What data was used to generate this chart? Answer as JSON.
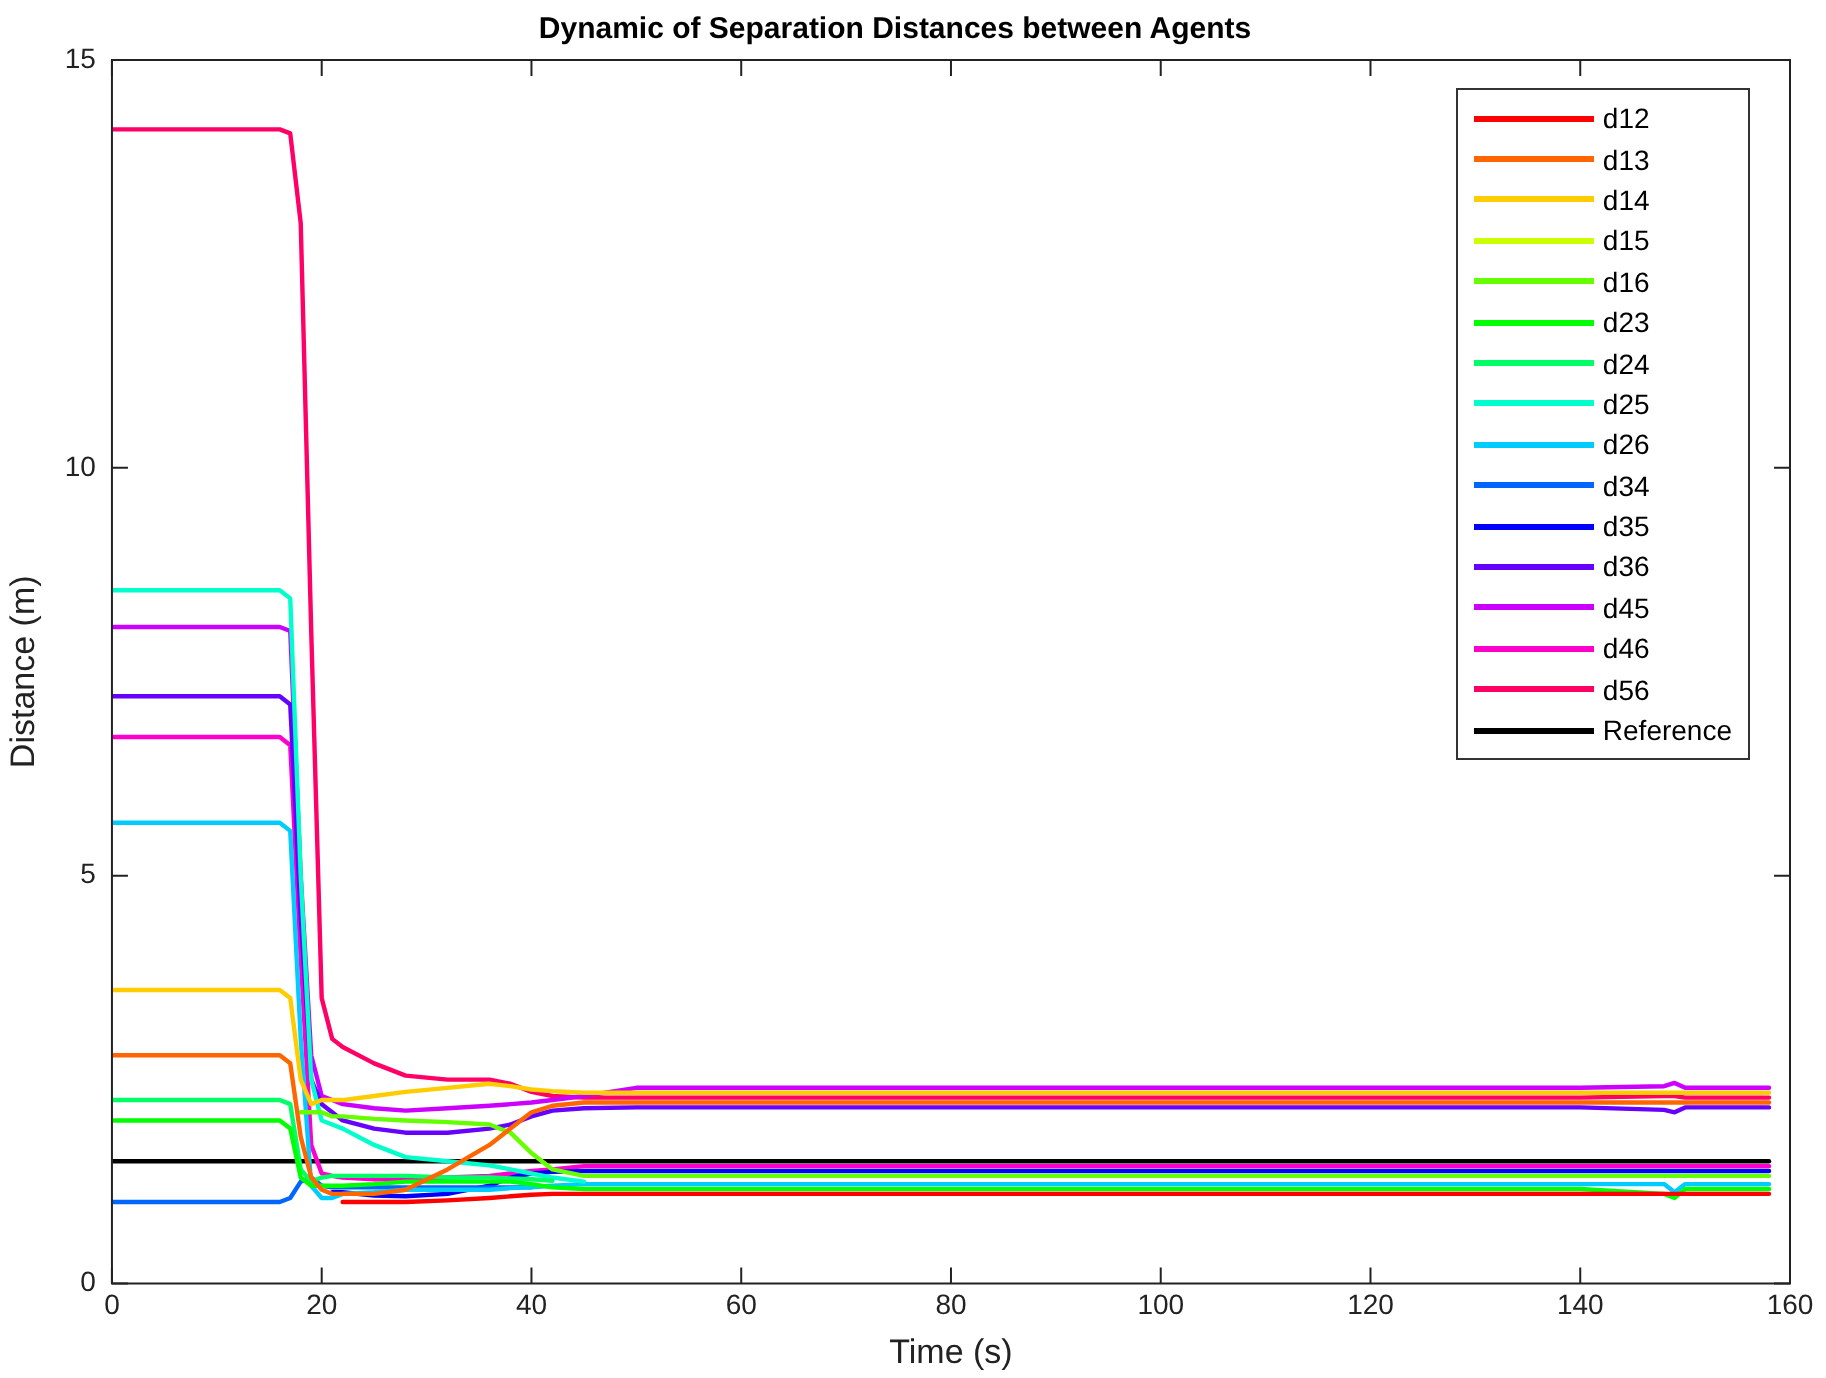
{
  "chart_data": {
    "type": "line",
    "title": "Dynamic of Separation Distances between Agents",
    "xlabel": "Time (s)",
    "ylabel": "Distance (m)",
    "x": [
      0,
      16,
      17,
      18,
      19,
      20,
      21,
      22,
      25,
      28,
      32,
      36,
      38,
      40,
      42,
      45,
      50,
      60,
      80,
      100,
      120,
      140,
      148,
      149,
      150,
      158
    ],
    "series": [
      {
        "name": "d12",
        "color": "#ff0000",
        "values": [
          null,
          null,
          null,
          null,
          null,
          null,
          null,
          1.0,
          1.0,
          1.0,
          1.02,
          1.05,
          1.07,
          1.09,
          1.1,
          1.1,
          1.1,
          1.1,
          1.1,
          1.1,
          1.1,
          1.1,
          1.1,
          1.1,
          1.1,
          1.1
        ]
      },
      {
        "name": "d13",
        "color": "#ff6600",
        "values": [
          2.8,
          2.8,
          2.7,
          1.8,
          1.3,
          1.15,
          1.1,
          1.1,
          1.1,
          1.15,
          1.4,
          1.7,
          1.9,
          2.1,
          2.18,
          2.22,
          2.22,
          2.22,
          2.22,
          2.22,
          2.22,
          2.22,
          2.22,
          2.22,
          2.22,
          2.22
        ]
      },
      {
        "name": "d14",
        "color": "#ffcc00",
        "values": [
          3.6,
          3.6,
          3.5,
          2.5,
          2.2,
          2.25,
          2.25,
          2.25,
          2.3,
          2.35,
          2.4,
          2.45,
          2.42,
          2.38,
          2.36,
          2.34,
          2.34,
          2.34,
          2.34,
          2.34,
          2.34,
          2.34,
          2.34,
          2.34,
          2.34,
          2.34
        ]
      },
      {
        "name": "d15",
        "color": "#ccff00",
        "values": [
          null,
          null,
          null,
          null,
          null,
          null,
          null,
          null,
          null,
          null,
          null,
          null,
          null,
          null,
          null,
          null,
          null,
          null,
          null,
          null,
          null,
          null,
          null,
          null,
          null,
          null
        ]
      },
      {
        "name": "d16",
        "color": "#66ff00",
        "values": [
          null,
          null,
          null,
          2.1,
          2.1,
          2.1,
          2.05,
          2.05,
          2.02,
          2.0,
          1.98,
          1.95,
          1.85,
          1.6,
          1.4,
          1.32,
          1.32,
          1.32,
          1.32,
          1.32,
          1.32,
          1.32,
          1.32,
          1.32,
          1.32,
          1.32
        ]
      },
      {
        "name": "d23",
        "color": "#00ff00",
        "values": [
          2.0,
          2.0,
          1.9,
          1.3,
          1.2,
          1.2,
          1.2,
          1.2,
          1.22,
          1.25,
          1.25,
          1.25,
          1.25,
          1.22,
          1.18,
          1.16,
          1.16,
          1.16,
          1.16,
          1.16,
          1.16,
          1.16,
          1.1,
          1.05,
          1.16,
          1.16
        ]
      },
      {
        "name": "d24",
        "color": "#00ff66",
        "values": [
          2.25,
          2.25,
          2.2,
          1.4,
          1.25,
          1.3,
          1.32,
          1.32,
          1.32,
          1.32,
          1.3,
          1.3,
          1.29,
          1.28,
          1.26,
          null,
          null,
          null,
          null,
          null,
          null,
          null,
          null,
          null,
          null,
          null
        ]
      },
      {
        "name": "d25",
        "color": "#00ffcc",
        "values": [
          8.5,
          8.5,
          8.4,
          5,
          2.5,
          2.0,
          1.95,
          1.9,
          1.7,
          1.55,
          1.5,
          1.45,
          1.4,
          1.35,
          1.3,
          1.25,
          null,
          null,
          null,
          null,
          null,
          null,
          null,
          null,
          null,
          null
        ]
      },
      {
        "name": "d26",
        "color": "#00ccff",
        "values": [
          5.65,
          5.65,
          5.55,
          3,
          1.2,
          1.05,
          1.05,
          1.1,
          1.12,
          1.15,
          1.15,
          1.15,
          1.17,
          1.18,
          1.2,
          1.22,
          1.22,
          1.22,
          1.22,
          1.22,
          1.22,
          1.22,
          1.22,
          1.12,
          1.22,
          1.22
        ]
      },
      {
        "name": "d34",
        "color": "#0066ff",
        "values": [
          1.0,
          1.0,
          1.05,
          1.25,
          1.3,
          1.2,
          1.18,
          1.18,
          1.18,
          1.18,
          1.18,
          1.18,
          1.18,
          1.18,
          null,
          null,
          null,
          null,
          null,
          null,
          null,
          null,
          null,
          null,
          null,
          null
        ]
      },
      {
        "name": "d35",
        "color": "#0000ff",
        "values": [
          null,
          null,
          null,
          null,
          null,
          null,
          1.12,
          1.12,
          1.08,
          1.07,
          1.1,
          1.2,
          1.3,
          1.35,
          1.37,
          1.38,
          1.38,
          1.38,
          1.38,
          1.38,
          1.38,
          1.38,
          1.38,
          1.38,
          1.38,
          1.38
        ]
      },
      {
        "name": "d36",
        "color": "#6600ff",
        "values": [
          7.2,
          7.2,
          7.1,
          4.5,
          2.5,
          2.2,
          2.1,
          2.0,
          1.9,
          1.85,
          1.85,
          1.9,
          1.95,
          2.05,
          2.12,
          2.15,
          2.16,
          2.16,
          2.16,
          2.16,
          2.16,
          2.16,
          2.13,
          2.1,
          2.16,
          2.16
        ]
      },
      {
        "name": "d45",
        "color": "#cc00ff",
        "values": [
          8.05,
          8.05,
          8.0,
          5,
          2.8,
          2.3,
          2.25,
          2.2,
          2.15,
          2.12,
          2.15,
          2.18,
          2.2,
          2.22,
          2.25,
          2.3,
          2.4,
          2.4,
          2.4,
          2.4,
          2.4,
          2.4,
          2.42,
          2.46,
          2.4,
          2.4
        ]
      },
      {
        "name": "d46",
        "color": "#ff00cc",
        "values": [
          6.7,
          6.7,
          6.6,
          4,
          1.7,
          1.35,
          1.32,
          1.3,
          1.28,
          1.28,
          1.3,
          1.32,
          1.35,
          1.38,
          1.4,
          1.44,
          1.44,
          1.44,
          1.44,
          1.44,
          1.44,
          1.44,
          1.44,
          1.44,
          1.44,
          1.44
        ]
      },
      {
        "name": "d56",
        "color": "#ff0066",
        "values": [
          14.15,
          14.15,
          14.1,
          13,
          8,
          3.5,
          3.0,
          2.9,
          2.7,
          2.55,
          2.5,
          2.5,
          2.45,
          2.35,
          2.3,
          2.28,
          2.28,
          2.28,
          2.28,
          2.28,
          2.28,
          2.28,
          2.3,
          2.3,
          2.28,
          2.28
        ]
      },
      {
        "name": "Reference",
        "color": "#000000",
        "x": [
          0,
          158
        ],
        "values": [
          1.5,
          1.5
        ]
      }
    ],
    "xlim": [
      0,
      160
    ],
    "xticks": [
      0,
      20,
      40,
      60,
      80,
      100,
      120,
      140,
      160
    ],
    "ylim": [
      0,
      15
    ],
    "yticks": [
      0,
      5,
      10,
      15
    ],
    "legend": "top right",
    "grid": false,
    "marker": "none",
    "line_style": "solid"
  }
}
